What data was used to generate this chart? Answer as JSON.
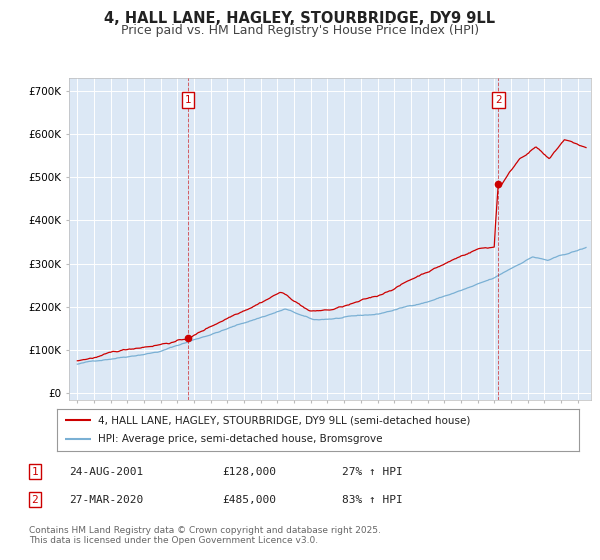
{
  "title": "4, HALL LANE, HAGLEY, STOURBRIDGE, DY9 9LL",
  "subtitle": "Price paid vs. HM Land Registry's House Price Index (HPI)",
  "background_color": "#ffffff",
  "plot_background_color": "#dce8f5",
  "grid_color": "#ffffff",
  "sale1_date_num": 2001.647,
  "sale1_price": 128000,
  "sale1_label": "1",
  "sale2_date_num": 2020.24,
  "sale2_price": 485000,
  "sale2_label": "2",
  "vline1_x": 2001.647,
  "vline2_x": 2020.24,
  "red_line_color": "#cc0000",
  "blue_line_color": "#7ab0d4",
  "vline_color": "#cc0000",
  "marker_color": "#cc0000",
  "ylim_min": -18000,
  "ylim_max": 730000,
  "xlim_min": 1994.5,
  "xlim_max": 2025.8,
  "ytick_values": [
    0,
    100000,
    200000,
    300000,
    400000,
    500000,
    600000,
    700000
  ],
  "ytick_labels": [
    "£0",
    "£100K",
    "£200K",
    "£300K",
    "£400K",
    "£500K",
    "£600K",
    "£700K"
  ],
  "xtick_values": [
    1995,
    1996,
    1997,
    1998,
    1999,
    2000,
    2001,
    2002,
    2003,
    2004,
    2005,
    2006,
    2007,
    2008,
    2009,
    2010,
    2011,
    2012,
    2013,
    2014,
    2015,
    2016,
    2017,
    2018,
    2019,
    2020,
    2021,
    2022,
    2023,
    2024,
    2025
  ],
  "legend_entry1": "4, HALL LANE, HAGLEY, STOURBRIDGE, DY9 9LL (semi-detached house)",
  "legend_entry2": "HPI: Average price, semi-detached house, Bromsgrove",
  "table_row1_num": "1",
  "table_row1_date": "24-AUG-2001",
  "table_row1_price": "£128,000",
  "table_row1_hpi": "27% ↑ HPI",
  "table_row2_num": "2",
  "table_row2_date": "27-MAR-2020",
  "table_row2_price": "£485,000",
  "table_row2_hpi": "83% ↑ HPI",
  "footnote1": "Contains HM Land Registry data © Crown copyright and database right 2025.",
  "footnote2": "This data is licensed under the Open Government Licence v3.0.",
  "title_fontsize": 10.5,
  "subtitle_fontsize": 9,
  "axis_fontsize": 7.5,
  "legend_fontsize": 7.5,
  "table_fontsize": 8,
  "footnote_fontsize": 6.5
}
